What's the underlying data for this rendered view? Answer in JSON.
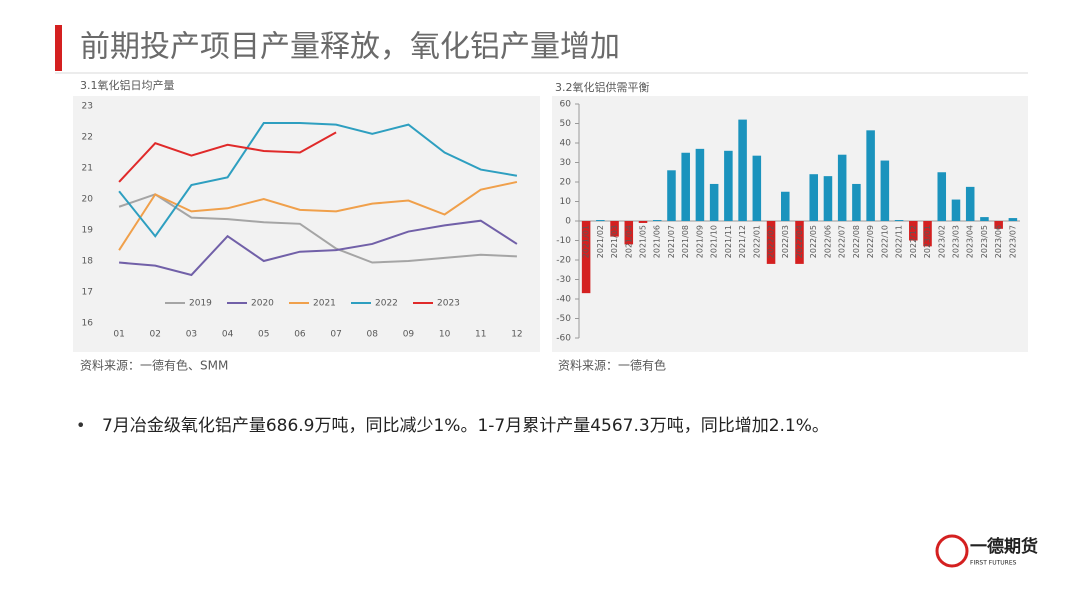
{
  "header": {
    "title": "前期投产项目产量释放，氧化铝产量增加"
  },
  "chart_data": [
    {
      "type": "line",
      "title": "3.1氧化铝日均产量",
      "source": "资料来源：一德有色、SMM",
      "categories": [
        "01",
        "02",
        "03",
        "04",
        "05",
        "06",
        "07",
        "08",
        "09",
        "10",
        "11",
        "12"
      ],
      "ylim": [
        16,
        23
      ],
      "yticks": [
        16,
        17,
        18,
        19,
        20,
        21,
        22,
        23
      ],
      "grid": false,
      "legend": "bottom",
      "series": [
        {
          "name": "2019",
          "color": "#a5a5a5",
          "values": [
            19.75,
            20.15,
            19.4,
            19.35,
            19.25,
            19.2,
            18.4,
            17.95,
            18.0,
            18.1,
            18.2,
            18.15
          ]
        },
        {
          "name": "2020",
          "color": "#7160a8",
          "values": [
            17.95,
            17.85,
            17.55,
            18.8,
            18.0,
            18.3,
            18.35,
            18.55,
            18.95,
            19.15,
            19.3,
            18.55
          ]
        },
        {
          "name": "2021",
          "color": "#f0a04b",
          "values": [
            18.35,
            20.15,
            19.6,
            19.7,
            20.0,
            19.65,
            19.6,
            19.85,
            19.95,
            19.5,
            20.3,
            20.55
          ]
        },
        {
          "name": "2022",
          "color": "#2e9fc0",
          "values": [
            20.25,
            18.8,
            20.45,
            20.7,
            22.45,
            22.45,
            22.4,
            22.1,
            22.4,
            21.5,
            20.95,
            20.75
          ]
        },
        {
          "name": "2023",
          "color": "#e02a2a",
          "values": [
            20.55,
            21.8,
            21.4,
            21.75,
            21.55,
            21.5,
            22.15,
            null,
            null,
            null,
            null,
            null
          ]
        }
      ]
    },
    {
      "type": "bar",
      "title": "3.2氧化铝供需平衡",
      "source": "资料来源：一德有色",
      "categories": [
        "2021/01",
        "2021/02",
        "2021/03",
        "2021/04",
        "2021/05",
        "2021/06",
        "2021/07",
        "2021/08",
        "2021/09",
        "2021/10",
        "2021/11",
        "2021/12",
        "2022/01",
        "2022/02",
        "2022/03",
        "2022/04",
        "2022/05",
        "2022/06",
        "2022/07",
        "2022/08",
        "2022/09",
        "2022/10",
        "2022/11",
        "2022/12",
        "2023/01",
        "2023/02",
        "2023/03",
        "2023/04",
        "2023/05",
        "2023/06",
        "2023/07"
      ],
      "values": [
        -37,
        0.5,
        -8,
        -12,
        -1,
        0.5,
        26,
        35,
        37,
        19,
        36,
        52,
        33.5,
        -22,
        15,
        -22,
        24,
        23,
        34,
        19,
        46.5,
        31,
        0.5,
        -10,
        -13,
        25,
        11,
        17.5,
        2,
        -4,
        1.5
      ],
      "color": "#1b93bd",
      "negative_color": "#d42020",
      "ylim": [
        -60,
        60
      ],
      "yticks": [
        -60,
        -50,
        -40,
        -30,
        -20,
        -10,
        0,
        10,
        20,
        30,
        40,
        50,
        60
      ],
      "grid": false
    }
  ],
  "bullet": "7月冶金级氧化铝产量686.9万吨，同比减少1%。1-7月累计产量4567.3万吨，同比增加2.1%。",
  "logo": {
    "name": "一德期货",
    "english": "FIRST FUTURES"
  }
}
